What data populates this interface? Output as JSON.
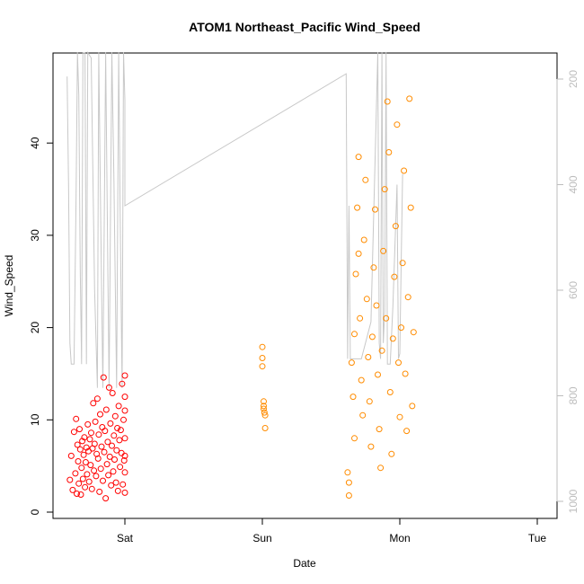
{
  "chart_data": {
    "type": "scatter",
    "title": "ATOM1 Northeast_Pacific Wind_Speed",
    "xlabel": "Date",
    "ylabel": "Wind_Speed",
    "ylim": [
      0,
      50
    ],
    "y_ticks": [
      "0",
      "10",
      "20",
      "30",
      "40"
    ],
    "x_ticks": [
      "Sat",
      "Sun",
      "Mon",
      "Tue"
    ],
    "xlim_days": [
      -0.45,
      3.1
    ],
    "y2_ticks": [
      "200",
      "400",
      "600",
      "800",
      "1000"
    ],
    "y2lim_top_to_bottom": [
      150,
      1010
    ],
    "grid": false,
    "colors": {
      "series_red": "#ff0000",
      "series_orange": "#ff8c00",
      "overlay_line": "#c8c8c8",
      "right_axis": "#bdbdbd"
    },
    "series": [
      {
        "color": "#ff0000",
        "points": [
          [
            -0.4,
            3.5
          ],
          [
            -0.39,
            6.1
          ],
          [
            -0.38,
            2.4
          ],
          [
            -0.37,
            8.7
          ],
          [
            -0.36,
            4.2
          ],
          [
            -0.355,
            10.1
          ],
          [
            -0.35,
            2.0
          ],
          [
            -0.345,
            7.3
          ],
          [
            -0.34,
            5.5
          ],
          [
            -0.335,
            3.1
          ],
          [
            -0.33,
            9.0
          ],
          [
            -0.325,
            6.8
          ],
          [
            -0.32,
            1.9
          ],
          [
            -0.315,
            4.8
          ],
          [
            -0.31,
            7.7
          ],
          [
            -0.305,
            3.6
          ],
          [
            -0.3,
            6.2
          ],
          [
            -0.295,
            8.1
          ],
          [
            -0.29,
            2.7
          ],
          [
            -0.285,
            5.4
          ],
          [
            -0.28,
            7.0
          ],
          [
            -0.275,
            4.1
          ],
          [
            -0.27,
            9.5
          ],
          [
            -0.265,
            6.6
          ],
          [
            -0.26,
            3.3
          ],
          [
            -0.255,
            7.9
          ],
          [
            -0.25,
            5.1
          ],
          [
            -0.245,
            8.6
          ],
          [
            -0.24,
            2.5
          ],
          [
            -0.235,
            6.9
          ],
          [
            -0.23,
            11.8
          ],
          [
            -0.225,
            4.5
          ],
          [
            -0.22,
            7.4
          ],
          [
            -0.215,
            9.8
          ],
          [
            -0.21,
            3.9
          ],
          [
            -0.205,
            6.3
          ],
          [
            -0.2,
            12.3
          ],
          [
            -0.195,
            5.8
          ],
          [
            -0.19,
            8.4
          ],
          [
            -0.185,
            2.2
          ],
          [
            -0.18,
            10.6
          ],
          [
            -0.175,
            4.7
          ],
          [
            -0.17,
            7.1
          ],
          [
            -0.165,
            9.2
          ],
          [
            -0.16,
            3.4
          ],
          [
            -0.155,
            14.6
          ],
          [
            -0.15,
            6.5
          ],
          [
            -0.145,
            8.8
          ],
          [
            -0.14,
            1.5
          ],
          [
            -0.135,
            11.1
          ],
          [
            -0.13,
            5.2
          ],
          [
            -0.125,
            7.6
          ],
          [
            -0.12,
            4.0
          ],
          [
            -0.115,
            13.5
          ],
          [
            -0.11,
            6.0
          ],
          [
            -0.105,
            9.6
          ],
          [
            -0.1,
            2.9
          ],
          [
            -0.095,
            7.2
          ],
          [
            -0.09,
            12.9
          ],
          [
            -0.085,
            4.4
          ],
          [
            -0.08,
            8.3
          ],
          [
            -0.075,
            5.7
          ],
          [
            -0.07,
            10.4
          ],
          [
            -0.065,
            3.2
          ],
          [
            -0.06,
            6.7
          ],
          [
            -0.055,
            9.1
          ],
          [
            -0.05,
            2.3
          ],
          [
            -0.045,
            11.5
          ],
          [
            -0.04,
            7.8
          ],
          [
            -0.035,
            4.9
          ],
          [
            -0.03,
            8.9
          ],
          [
            -0.025,
            6.4
          ],
          [
            -0.02,
            13.9
          ],
          [
            -0.015,
            3.0
          ],
          [
            -0.01,
            10.0
          ],
          [
            -0.005,
            5.6
          ],
          [
            0.0,
            8.0
          ],
          [
            0.0,
            2.1
          ],
          [
            0.0,
            14.8
          ],
          [
            0.0,
            6.1
          ],
          [
            0.0,
            11.0
          ],
          [
            0.0,
            4.3
          ],
          [
            0.0,
            12.5
          ]
        ]
      },
      {
        "color": "#ff8c00",
        "points": [
          [
            1.0,
            17.9
          ],
          [
            1.0,
            16.7
          ],
          [
            1.0,
            15.8
          ],
          [
            1.01,
            12.0
          ],
          [
            1.01,
            11.5
          ],
          [
            1.015,
            10.8
          ],
          [
            1.02,
            9.1
          ],
          [
            1.01,
            11.2
          ],
          [
            1.02,
            10.5
          ],
          [
            1.62,
            4.3
          ],
          [
            1.63,
            1.8
          ],
          [
            1.63,
            3.2
          ],
          [
            1.65,
            16.2
          ],
          [
            1.66,
            12.5
          ],
          [
            1.67,
            8.0
          ],
          [
            1.67,
            19.3
          ],
          [
            1.68,
            25.8
          ],
          [
            1.69,
            33.0
          ],
          [
            1.7,
            38.5
          ],
          [
            1.7,
            28.0
          ],
          [
            1.71,
            21.0
          ],
          [
            1.72,
            14.3
          ],
          [
            1.73,
            10.5
          ],
          [
            1.74,
            29.5
          ],
          [
            1.75,
            36.0
          ],
          [
            1.76,
            23.1
          ],
          [
            1.77,
            16.8
          ],
          [
            1.78,
            12.0
          ],
          [
            1.79,
            7.1
          ],
          [
            1.8,
            19.0
          ],
          [
            1.81,
            26.5
          ],
          [
            1.82,
            32.8
          ],
          [
            1.83,
            22.4
          ],
          [
            1.84,
            14.9
          ],
          [
            1.85,
            9.0
          ],
          [
            1.86,
            4.8
          ],
          [
            1.87,
            17.5
          ],
          [
            1.88,
            28.3
          ],
          [
            1.89,
            35.0
          ],
          [
            1.9,
            21.0
          ],
          [
            1.91,
            44.5
          ],
          [
            1.92,
            39.0
          ],
          [
            1.93,
            13.0
          ],
          [
            1.94,
            6.3
          ],
          [
            1.95,
            18.8
          ],
          [
            1.96,
            25.5
          ],
          [
            1.97,
            31.0
          ],
          [
            1.98,
            42.0
          ],
          [
            1.99,
            16.2
          ],
          [
            2.0,
            10.3
          ],
          [
            2.01,
            20.0
          ],
          [
            2.02,
            27.0
          ],
          [
            2.03,
            37.0
          ],
          [
            2.04,
            15.0
          ],
          [
            2.05,
            8.8
          ],
          [
            2.06,
            23.3
          ],
          [
            2.07,
            44.8
          ],
          [
            2.08,
            33.0
          ],
          [
            2.09,
            11.5
          ],
          [
            2.1,
            19.5
          ]
        ]
      }
    ],
    "overlay_line": [
      [
        -0.42,
        195
      ],
      [
        -0.41,
        400
      ],
      [
        -0.4,
        700
      ],
      [
        -0.39,
        740
      ],
      [
        -0.37,
        740
      ],
      [
        -0.355,
        420
      ],
      [
        -0.345,
        150
      ],
      [
        -0.335,
        230
      ],
      [
        -0.325,
        560
      ],
      [
        -0.315,
        740
      ],
      [
        -0.305,
        150
      ],
      [
        -0.29,
        150
      ],
      [
        -0.28,
        740
      ],
      [
        -0.27,
        150
      ],
      [
        -0.245,
        160
      ],
      [
        -0.22,
        600
      ],
      [
        -0.2,
        785
      ],
      [
        -0.19,
        150
      ],
      [
        -0.175,
        480
      ],
      [
        -0.16,
        785
      ],
      [
        -0.14,
        150
      ],
      [
        -0.125,
        540
      ],
      [
        -0.115,
        785
      ],
      [
        -0.095,
        150
      ],
      [
        -0.08,
        390
      ],
      [
        -0.06,
        785
      ],
      [
        -0.045,
        150
      ],
      [
        -0.035,
        430
      ],
      [
        -0.02,
        785
      ],
      [
        -0.01,
        150
      ],
      [
        0.0,
        240
      ],
      [
        0.0,
        440
      ],
      [
        1.61,
        190
      ],
      [
        1.62,
        730
      ],
      [
        1.63,
        440
      ],
      [
        1.64,
        730
      ],
      [
        1.72,
        730
      ],
      [
        1.79,
        660
      ],
      [
        1.84,
        150
      ],
      [
        1.85,
        700
      ],
      [
        1.86,
        730
      ],
      [
        1.87,
        150
      ],
      [
        1.88,
        700
      ],
      [
        1.89,
        640
      ],
      [
        1.9,
        150
      ],
      [
        1.91,
        740
      ],
      [
        1.93,
        740
      ],
      [
        1.95,
        630
      ],
      [
        1.98,
        400
      ],
      [
        1.99,
        730
      ],
      [
        2.0,
        720
      ],
      [
        2.01,
        550
      ],
      [
        2.02,
        380
      ]
    ]
  }
}
